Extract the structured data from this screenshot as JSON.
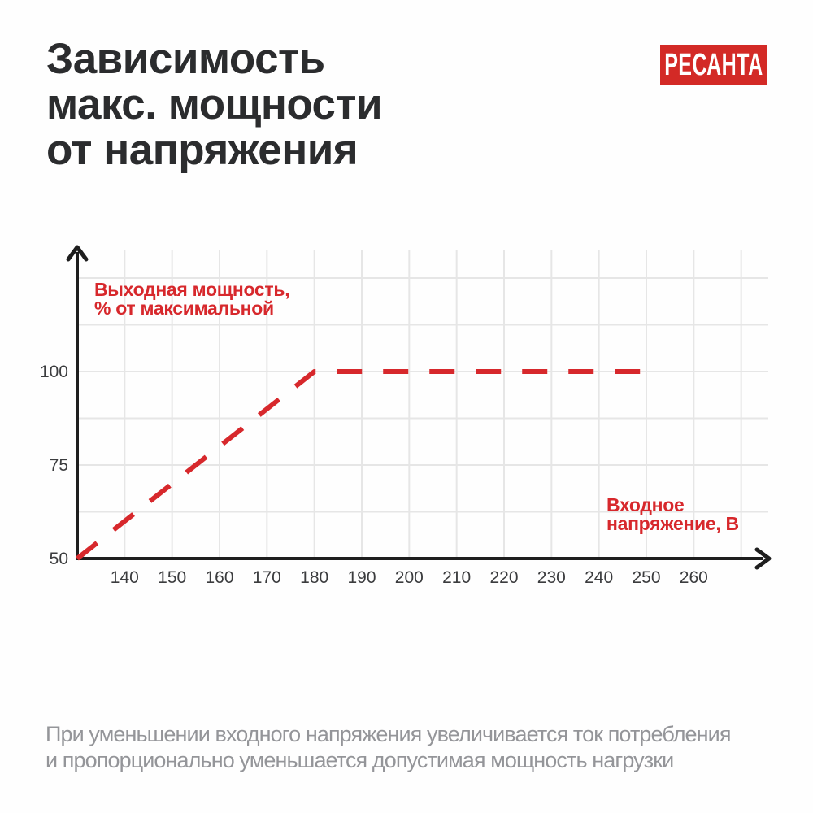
{
  "header": {
    "title_lines": [
      "Зависимость",
      "макс. мощности",
      "от напряжения"
    ],
    "brand_logo": "РЕСАНТА"
  },
  "footer": {
    "lines": [
      "При уменьшении входного напряжения увеличивается ток потребления",
      "и пропорционально уменьшается допустимая мощность нагрузки"
    ]
  },
  "colors": {
    "accent_red": "#d7282c",
    "logo_bg": "#d32a26",
    "logo_text": "#ffffff",
    "title_text": "#2b2c2e",
    "axis": "#1e1e1e",
    "grid": "#e6e6e6",
    "tick_text": "#3b3c3e",
    "footer_text": "#949599",
    "background": "#fefefe"
  },
  "chart_data": {
    "type": "line",
    "title": "Зависимость макс. мощности от напряжения",
    "xlabel": "Входное напряжение, В",
    "ylabel": "Выходная мощность, % от максимальной",
    "xlabel_lines": [
      "Входное",
      "напряжение, В"
    ],
    "ylabel_lines": [
      "Выходная мощность,",
      "% от максимальной"
    ],
    "x_ticks": [
      140,
      150,
      160,
      170,
      180,
      190,
      200,
      210,
      220,
      230,
      240,
      250,
      260
    ],
    "y_ticks": [
      100,
      75,
      50
    ],
    "xlim": [
      130,
      275
    ],
    "ylim": [
      50,
      132
    ],
    "grid": true,
    "x_gridlines": [
      140,
      150,
      160,
      170,
      180,
      190,
      200,
      210,
      220,
      230,
      240,
      250,
      260,
      270
    ],
    "y_gridlines": [
      62.5,
      75,
      87.5,
      100,
      112.5,
      125
    ],
    "legend_position": "none",
    "series": [
      {
        "name": "Выходная мощность, % от максимальной",
        "color": "#d7282c",
        "style": "dashed",
        "points": [
          [
            130,
            50
          ],
          [
            180,
            100
          ],
          [
            250,
            100
          ]
        ]
      }
    ]
  }
}
